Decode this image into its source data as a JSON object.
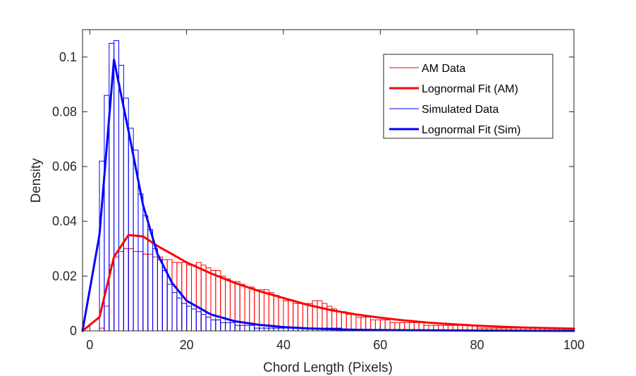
{
  "chart_data": {
    "type": "bar",
    "title": "",
    "xlabel": "Chord Length (Pixels)",
    "ylabel": "Density",
    "xlim": [
      -1.5,
      100
    ],
    "ylim": [
      0,
      0.11
    ],
    "xticks": [
      0,
      20,
      40,
      60,
      80,
      100
    ],
    "xtick_labels": [
      "0",
      "20",
      "40",
      "60",
      "80",
      "100"
    ],
    "yticks": [
      0,
      0.02,
      0.04,
      0.06,
      0.08,
      0.1
    ],
    "ytick_labels": [
      "0",
      "0.02",
      "0.04",
      "0.06",
      "0.08",
      "0.1"
    ],
    "grid": false,
    "legend_placement": "top-right",
    "colors": {
      "am": "#ff0000",
      "sim": "#0000ff",
      "axis": "#262626"
    },
    "series": [
      {
        "name": "AM Data",
        "kind": "histogram",
        "bin_width": 1,
        "bin_start": 2,
        "values": [
          0.001,
          0.009,
          0.024,
          0.027,
          0.029,
          0.03,
          0.03,
          0.029,
          0.029,
          0.028,
          0.028,
          0.027,
          0.027,
          0.026,
          0.026,
          0.025,
          0.025,
          0.025,
          0.024,
          0.024,
          0.025,
          0.024,
          0.023,
          0.022,
          0.022,
          0.02,
          0.019,
          0.018,
          0.018,
          0.017,
          0.016,
          0.016,
          0.015,
          0.015,
          0.015,
          0.014,
          0.013,
          0.012,
          0.011,
          0.011,
          0.01,
          0.01,
          0.01,
          0.01,
          0.011,
          0.011,
          0.01,
          0.009,
          0.008,
          0.007,
          0.007,
          0.006,
          0.006,
          0.005,
          0.005,
          0.005,
          0.004,
          0.004,
          0.004,
          0.004,
          0.003,
          0.003,
          0.003,
          0.003,
          0.003,
          0.003,
          0.003,
          0.002,
          0.002,
          0.002,
          0.002,
          0.002,
          0.002,
          0.002,
          0.002,
          0.002,
          0.002,
          0.002,
          0.001,
          0.001,
          0.001,
          0.001,
          0.001,
          0.001,
          0.001,
          0.001,
          0.001,
          0.001,
          0.001,
          0.001,
          0.001,
          0.001,
          0.001,
          0.001,
          0.001,
          0.001,
          0.001,
          0.001
        ]
      },
      {
        "name": "Lognormal Fit (AM)",
        "kind": "line",
        "x": [
          -1.5,
          2,
          5,
          8,
          11,
          14,
          17,
          20,
          25,
          30,
          35,
          40,
          45,
          50,
          55,
          60,
          65,
          70,
          75,
          80,
          85,
          90,
          95,
          100
        ],
        "y": [
          0.0,
          0.005,
          0.027,
          0.035,
          0.0345,
          0.031,
          0.028,
          0.025,
          0.021,
          0.0175,
          0.0145,
          0.012,
          0.0095,
          0.0075,
          0.006,
          0.0048,
          0.0038,
          0.003,
          0.0024,
          0.0019,
          0.0015,
          0.0012,
          0.001,
          0.0008
        ]
      },
      {
        "name": "Simulated Data",
        "kind": "histogram",
        "bin_width": 1,
        "bin_start": 2,
        "values": [
          0.062,
          0.086,
          0.105,
          0.106,
          0.097,
          0.085,
          0.074,
          0.066,
          0.05,
          0.042,
          0.037,
          0.03,
          0.026,
          0.022,
          0.017,
          0.014,
          0.012,
          0.01,
          0.009,
          0.008,
          0.007,
          0.006,
          0.005,
          0.004,
          0.004,
          0.003,
          0.003,
          0.003,
          0.002,
          0.002,
          0.002,
          0.002,
          0.001,
          0.001,
          0.001,
          0.001,
          0.001,
          0.001,
          0.001,
          0.001,
          0.001,
          0.001,
          0.001,
          0.001,
          0.001,
          0.001,
          0.001,
          0.001,
          0.001,
          0.001
        ]
      },
      {
        "name": "Lognormal Fit (Sim)",
        "kind": "line",
        "x": [
          -1.5,
          2,
          5,
          8,
          11,
          14,
          17,
          20,
          25,
          30,
          35,
          40,
          45,
          50,
          55,
          60,
          70,
          80,
          90,
          100
        ],
        "y": [
          0.0,
          0.035,
          0.099,
          0.073,
          0.046,
          0.028,
          0.0175,
          0.011,
          0.006,
          0.0035,
          0.0022,
          0.0014,
          0.0009,
          0.0006,
          0.0004,
          0.0003,
          0.0002,
          0.0001,
          5e-05,
          0.0
        ]
      }
    ]
  }
}
